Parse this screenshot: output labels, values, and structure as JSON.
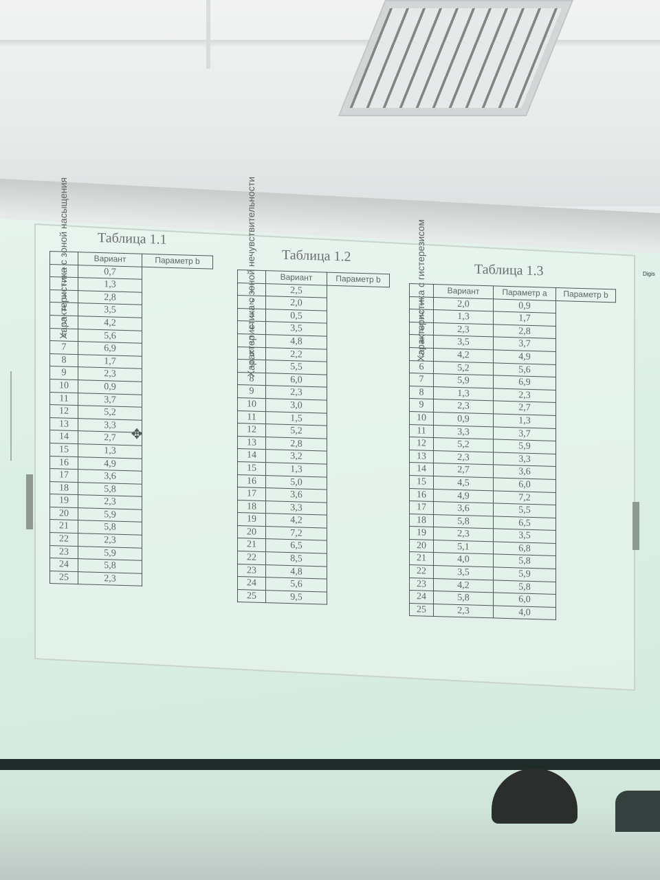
{
  "tables": [
    {
      "title": "Таблица 1.1",
      "side_label": "Характеристика с зоной насыщения",
      "headers": [
        "Вариант",
        "Параметр b"
      ],
      "rows": [
        [
          "1",
          "0,7"
        ],
        [
          "2",
          "1,3"
        ],
        [
          "3",
          "2,8"
        ],
        [
          "4",
          "3,5"
        ],
        [
          "5",
          "4,2"
        ],
        [
          "6",
          "5,6"
        ],
        [
          "7",
          "6,9"
        ],
        [
          "8",
          "1,7"
        ],
        [
          "9",
          "2,3"
        ],
        [
          "10",
          "0,9"
        ],
        [
          "11",
          "3,7"
        ],
        [
          "12",
          "5,2"
        ],
        [
          "13",
          "3,3"
        ],
        [
          "14",
          "2,7"
        ],
        [
          "15",
          "1,3"
        ],
        [
          "16",
          "4,9"
        ],
        [
          "17",
          "3,6"
        ],
        [
          "18",
          "5,8"
        ],
        [
          "19",
          "2,3"
        ],
        [
          "20",
          "5,9"
        ],
        [
          "21",
          "5,8"
        ],
        [
          "22",
          "2,3"
        ],
        [
          "23",
          "5,9"
        ],
        [
          "24",
          "5,8"
        ],
        [
          "25",
          "2,3"
        ]
      ]
    },
    {
      "title": "Таблица 1.2",
      "side_label": "Характеристика с зоной нечувствительности",
      "headers": [
        "Вариант",
        "Параметр b"
      ],
      "rows": [
        [
          "1",
          "2,5"
        ],
        [
          "2",
          "2,0"
        ],
        [
          "3",
          "0,5"
        ],
        [
          "4",
          "3,5"
        ],
        [
          "5",
          "4,8"
        ],
        [
          "6",
          "2,2"
        ],
        [
          "7",
          "5,5"
        ],
        [
          "8",
          "6,0"
        ],
        [
          "9",
          "2,3"
        ],
        [
          "10",
          "3,0"
        ],
        [
          "11",
          "1,5"
        ],
        [
          "12",
          "5,2"
        ],
        [
          "13",
          "2,8"
        ],
        [
          "14",
          "3,2"
        ],
        [
          "15",
          "1,3"
        ],
        [
          "16",
          "5,0"
        ],
        [
          "17",
          "3,6"
        ],
        [
          "18",
          "3,3"
        ],
        [
          "19",
          "4,2"
        ],
        [
          "20",
          "7,2"
        ],
        [
          "21",
          "6,5"
        ],
        [
          "22",
          "8,5"
        ],
        [
          "23",
          "4,8"
        ],
        [
          "24",
          "5,6"
        ],
        [
          "25",
          "9,5"
        ]
      ]
    },
    {
      "title": "Таблица 1.3",
      "side_label": "Характеристика с гистерезисом",
      "headers": [
        "Вариант",
        "Параметр a",
        "Параметр b"
      ],
      "rows": [
        [
          "1",
          "2,0",
          "0,9"
        ],
        [
          "2",
          "1,3",
          "1,7"
        ],
        [
          "3",
          "2,3",
          "2,8"
        ],
        [
          "4",
          "3,5",
          "3,7"
        ],
        [
          "5",
          "4,2",
          "4,9"
        ],
        [
          "6",
          "5,2",
          "5,6"
        ],
        [
          "7",
          "5,9",
          "6,9"
        ],
        [
          "8",
          "1,3",
          "2,3"
        ],
        [
          "9",
          "2,3",
          "2,7"
        ],
        [
          "10",
          "0,9",
          "1,3"
        ],
        [
          "11",
          "3,3",
          "3,7"
        ],
        [
          "12",
          "5,2",
          "5,9"
        ],
        [
          "13",
          "2,3",
          "3,3"
        ],
        [
          "14",
          "2,7",
          "3,6"
        ],
        [
          "15",
          "4,5",
          "6,0"
        ],
        [
          "16",
          "4,9",
          "7,2"
        ],
        [
          "17",
          "3,6",
          "5,5"
        ],
        [
          "18",
          "5,8",
          "6,5"
        ],
        [
          "19",
          "2,3",
          "3,5"
        ],
        [
          "20",
          "5,1",
          "6,8"
        ],
        [
          "21",
          "4,0",
          "5,8"
        ],
        [
          "22",
          "3,5",
          "5,9"
        ],
        [
          "23",
          "4,2",
          "5,8"
        ],
        [
          "24",
          "5,8",
          "6,0"
        ],
        [
          "25",
          "2,3",
          "4,0"
        ]
      ]
    }
  ],
  "screen_brand": "Digis"
}
